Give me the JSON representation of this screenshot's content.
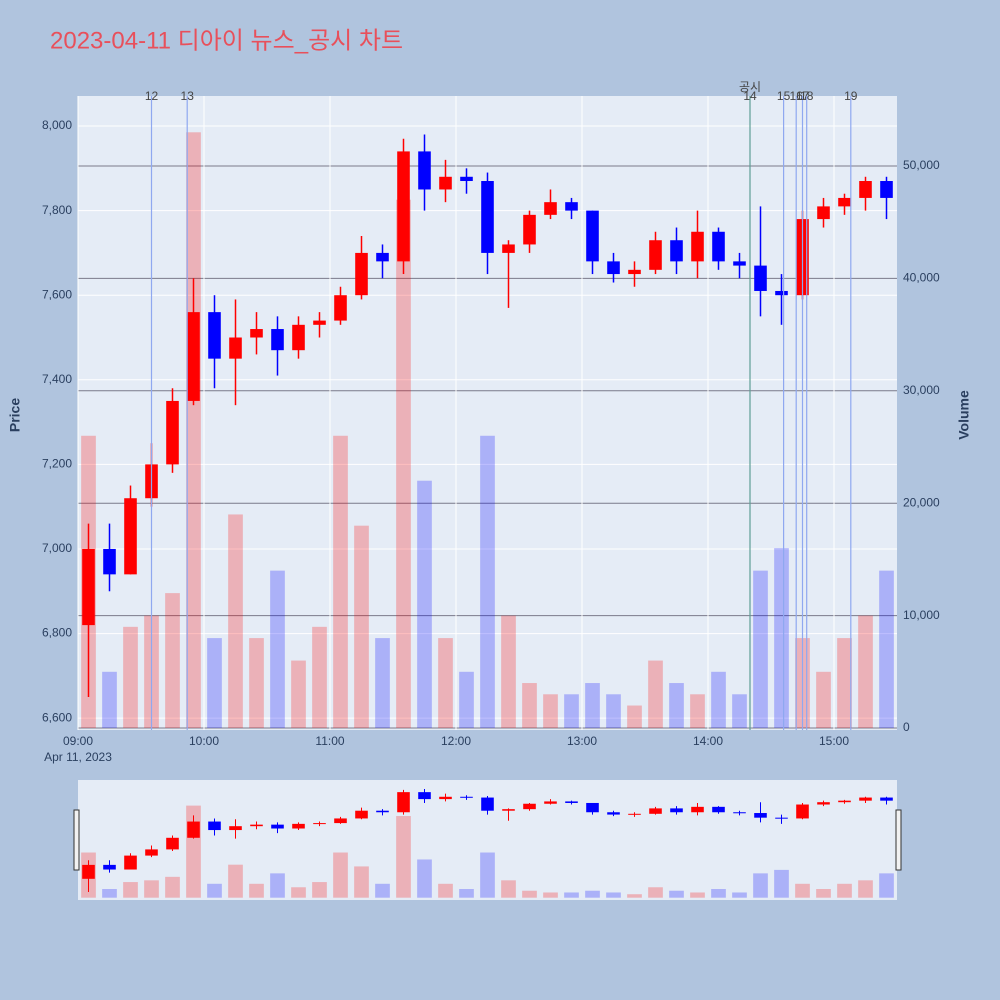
{
  "chart_data": {
    "type": "candlestick",
    "title": "2023-04-11 디아이 뉴스_공시 차트",
    "x_subtitle": "Apr 11, 2023",
    "ylabel": "Price",
    "y2label": "Volume",
    "increasing_color": "#ff0000",
    "decreasing_color": "#0000ff",
    "x": [
      "09:00",
      "09:10",
      "09:20",
      "09:30",
      "09:40",
      "09:50",
      "10:00",
      "10:10",
      "10:20",
      "10:30",
      "10:40",
      "10:50",
      "11:00",
      "11:10",
      "11:20",
      "11:30",
      "11:40",
      "11:50",
      "12:00",
      "12:10",
      "12:20",
      "12:30",
      "12:40",
      "12:50",
      "13:00",
      "13:10",
      "13:20",
      "13:30",
      "13:40",
      "13:50",
      "14:00",
      "14:10",
      "14:20",
      "14:30",
      "14:40",
      "14:50",
      "15:00",
      "15:10",
      "15:20"
    ],
    "open": [
      6820,
      7000,
      6940,
      7120,
      7200,
      7350,
      7560,
      7450,
      7500,
      7520,
      7470,
      7530,
      7540,
      7600,
      7700,
      7680,
      7940,
      7850,
      7880,
      7870,
      7700,
      7720,
      7790,
      7820,
      7800,
      7680,
      7650,
      7660,
      7730,
      7680,
      7750,
      7680,
      7670,
      7610,
      7600,
      7780,
      7810,
      7830,
      7870
    ],
    "high": [
      7060,
      7060,
      7150,
      7250,
      7380,
      7640,
      7600,
      7590,
      7560,
      7550,
      7550,
      7560,
      7620,
      7740,
      7720,
      7970,
      7980,
      7920,
      7900,
      7890,
      7730,
      7800,
      7850,
      7830,
      7800,
      7700,
      7680,
      7750,
      7760,
      7800,
      7760,
      7700,
      7810,
      7650,
      7800,
      7830,
      7840,
      7880,
      7880
    ],
    "low": [
      6650,
      6900,
      6940,
      7100,
      7180,
      7340,
      7380,
      7340,
      7460,
      7410,
      7450,
      7500,
      7530,
      7590,
      7640,
      7650,
      7800,
      7820,
      7840,
      7650,
      7570,
      7700,
      7780,
      7780,
      7650,
      7630,
      7620,
      7650,
      7650,
      7640,
      7660,
      7640,
      7550,
      7530,
      7590,
      7760,
      7790,
      7800,
      7780
    ],
    "close": [
      7000,
      6940,
      7120,
      7200,
      7350,
      7560,
      7450,
      7500,
      7520,
      7470,
      7530,
      7540,
      7600,
      7700,
      7680,
      7940,
      7850,
      7880,
      7870,
      7700,
      7720,
      7790,
      7820,
      7800,
      7680,
      7650,
      7660,
      7730,
      7680,
      7750,
      7680,
      7670,
      7610,
      7600,
      7780,
      7810,
      7830,
      7870,
      7830
    ],
    "volume": [
      26000,
      5000,
      9000,
      10000,
      12000,
      53000,
      8000,
      19000,
      8000,
      14000,
      6000,
      9000,
      26000,
      18000,
      8000,
      47000,
      22000,
      8000,
      5000,
      26000,
      10000,
      4000,
      3000,
      3000,
      4000,
      3000,
      2000,
      6000,
      4000,
      3000,
      5000,
      3000,
      14000,
      16000,
      8000,
      5000,
      8000,
      10000,
      14000
    ],
    "xlim": [
      "09:00",
      "15:30"
    ],
    "xticks": [
      "09:00",
      "10:00",
      "11:00",
      "12:00",
      "13:00",
      "14:00",
      "15:00"
    ],
    "ylim": [
      6572,
      8071
    ],
    "yticks": [
      {
        "value": 6600,
        "label": "6,600"
      },
      {
        "value": 6800,
        "label": "6,800"
      },
      {
        "value": 7000,
        "label": "7,000"
      },
      {
        "value": 7200,
        "label": "7,200"
      },
      {
        "value": 7400,
        "label": "7,400"
      },
      {
        "value": 7600,
        "label": "7,600"
      },
      {
        "value": 7800,
        "label": "7,800"
      },
      {
        "value": 8000,
        "label": "8,000"
      }
    ],
    "y2lim": [
      -178,
      56228
    ],
    "y2ticks": [
      0,
      {
        "value": 10000,
        "label": "10,000"
      },
      {
        "value": 20000,
        "label": "20,000"
      },
      {
        "value": 30000,
        "label": "30,000"
      },
      {
        "value": 40000,
        "label": "40,000"
      },
      {
        "value": 50000,
        "label": "50,000"
      }
    ],
    "marker_color": "#8fa8f0",
    "markers": [
      {
        "x": "09:35",
        "label": "12"
      },
      {
        "x": "09:52",
        "label": "13"
      },
      {
        "x": "14:20",
        "label": "14",
        "note": "공시",
        "color": "#5f9e95"
      },
      {
        "x": "14:36",
        "label": "15"
      },
      {
        "x": "14:42",
        "label": "16"
      },
      {
        "x": "14:45",
        "label": "17"
      },
      {
        "x": "14:47",
        "label": "18"
      },
      {
        "x": "15:08",
        "label": "19"
      }
    ]
  }
}
